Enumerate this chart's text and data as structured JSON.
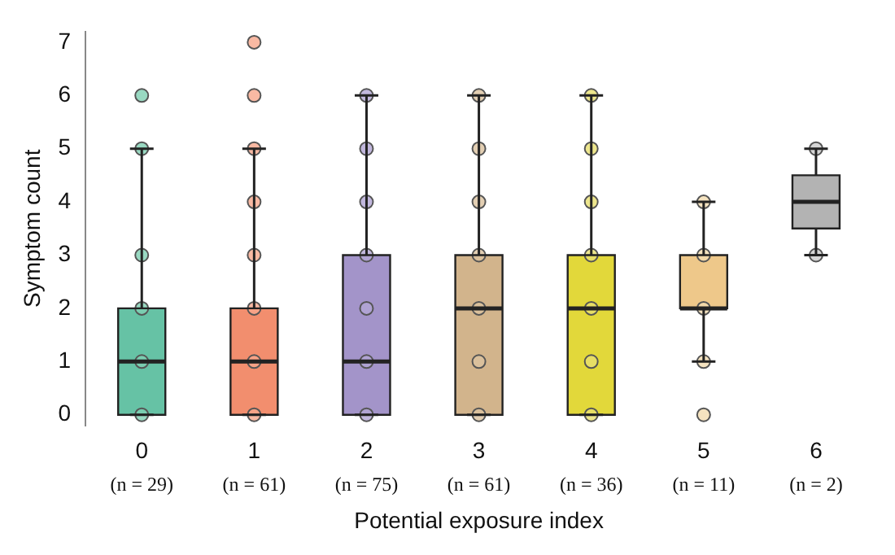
{
  "chart_data": {
    "type": "box",
    "xlabel": "Potential exposure index",
    "ylabel": "Symptom count",
    "categories": [
      "0",
      "1",
      "2",
      "3",
      "4",
      "5",
      "6"
    ],
    "colors": [
      "#66c2a5",
      "#f28e6e",
      "#a394c9",
      "#d2b48c",
      "#e2d83a",
      "#eec88a",
      "#b3b3b3"
    ],
    "boxes": [
      {
        "low": 0,
        "q1": 0,
        "median": 1,
        "q3": 2,
        "high": 5
      },
      {
        "low": 0,
        "q1": 0,
        "median": 1,
        "q3": 2,
        "high": 5
      },
      {
        "low": 0,
        "q1": 0,
        "median": 1,
        "q3": 3,
        "high": 6
      },
      {
        "low": 0,
        "q1": 0,
        "median": 2,
        "q3": 3,
        "high": 6
      },
      {
        "low": 0,
        "q1": 0,
        "median": 2,
        "q3": 3,
        "high": 6
      },
      {
        "low": 1,
        "q1": 2,
        "median": 2,
        "q3": 3,
        "high": 4
      },
      {
        "low": 3,
        "q1": 3.5,
        "median": 4,
        "q3": 4.5,
        "high": 5
      }
    ],
    "series": [
      {
        "type": "scatter",
        "color": "#7fcfb3",
        "x": [
          "0",
          "0",
          "0",
          "0",
          "0",
          "0"
        ],
        "values": [
          0,
          1,
          2,
          3,
          5,
          6
        ]
      },
      {
        "type": "scatter",
        "color": "#f7a88c",
        "x": [
          "1",
          "1",
          "1",
          "1",
          "1",
          "1",
          "1",
          "1"
        ],
        "values": [
          0,
          1,
          2,
          3,
          4,
          5,
          6,
          7
        ]
      },
      {
        "type": "scatter",
        "color": "#b3a6d6",
        "x": [
          "2",
          "2",
          "2",
          "2",
          "2",
          "2",
          "2"
        ],
        "values": [
          0,
          1,
          2,
          3,
          4,
          5,
          6
        ]
      },
      {
        "type": "scatter",
        "color": "#dcc3a0",
        "x": [
          "3",
          "3",
          "3",
          "3",
          "3",
          "3",
          "3"
        ],
        "values": [
          0,
          1,
          2,
          3,
          4,
          5,
          6
        ]
      },
      {
        "type": "scatter",
        "color": "#e8e070",
        "x": [
          "4",
          "4",
          "4",
          "4",
          "4",
          "4",
          "4"
        ],
        "values": [
          0,
          1,
          2,
          3,
          4,
          5,
          6
        ]
      },
      {
        "type": "scatter",
        "color": "#f3dcb0",
        "x": [
          "5",
          "5",
          "5",
          "5",
          "5"
        ],
        "values": [
          0,
          1,
          2,
          3,
          4
        ]
      },
      {
        "type": "scatter",
        "color": "#cccccc",
        "x": [
          "6",
          "6"
        ],
        "values": [
          3,
          5
        ]
      }
    ],
    "ylim": [
      -0.2,
      7.2
    ],
    "yticks": [
      0,
      1,
      2,
      3,
      4,
      5,
      6,
      7
    ],
    "grid": false,
    "legend": false,
    "marker": "circle",
    "annotations": [
      "(n = 29)",
      "(n = 61)",
      "(n = 75)",
      "(n = 61)",
      "(n = 36)",
      "(n = 11)",
      "(n = 2)"
    ]
  }
}
